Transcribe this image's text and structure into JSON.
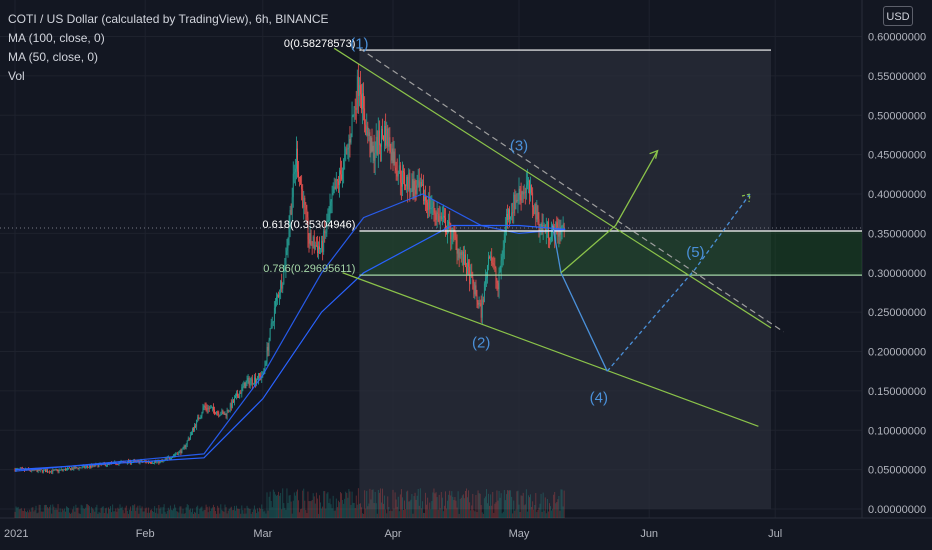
{
  "header": {
    "title": "COTI / US Dollar (calculated by TradingView), 6h, BINANCE",
    "indicators": [
      "MA (100, close, 0)",
      "MA (50, close, 0)",
      "Vol"
    ]
  },
  "currency_button": "USD",
  "colors": {
    "background": "#131722",
    "up_candle": "#26a69a",
    "down_candle": "#ef5350",
    "ma_line": "#2962ff",
    "projection": "#4a90d9",
    "trendline": "#8bc34a",
    "fib_green": "#a5d6a7",
    "fib_white": "#ffffff",
    "text": "#d1d4dc"
  },
  "chart_data": {
    "type": "candlestick",
    "title": "COTI / US Dollar (calculated by TradingView), 6h, BINANCE",
    "y_axis": {
      "ticks": [
        "0.60000000",
        "0.55000000",
        "0.50000000",
        "0.45000000",
        "0.40000000",
        "0.35000000",
        "0.30000000",
        "0.25000000",
        "0.20000000",
        "0.15000000",
        "0.10000000",
        "0.05000000",
        "0.00000000"
      ],
      "values": [
        0.6,
        0.55,
        0.5,
        0.45,
        0.4,
        0.35,
        0.3,
        0.25,
        0.2,
        0.15,
        0.1,
        0.05,
        0.0
      ],
      "range": [
        0,
        0.62
      ]
    },
    "x_axis": {
      "labels": [
        "2021",
        "Feb",
        "Mar",
        "Apr",
        "May",
        "Jun",
        "Jul"
      ],
      "dates": [
        "2021-01-01",
        "2021-02-01",
        "2021-03-01",
        "2021-04-01",
        "2021-05-01",
        "2021-06-01",
        "2021-07-01"
      ]
    },
    "price_path": [
      [
        "2021-01-01",
        0.05
      ],
      [
        "2021-01-10",
        0.048
      ],
      [
        "2021-01-20",
        0.055
      ],
      [
        "2021-01-28",
        0.06
      ],
      [
        "2021-02-05",
        0.06
      ],
      [
        "2021-02-10",
        0.075
      ],
      [
        "2021-02-15",
        0.13
      ],
      [
        "2021-02-20",
        0.12
      ],
      [
        "2021-02-25",
        0.16
      ],
      [
        "2021-03-01",
        0.17
      ],
      [
        "2021-03-04",
        0.26
      ],
      [
        "2021-03-06",
        0.3
      ],
      [
        "2021-03-09",
        0.45
      ],
      [
        "2021-03-12",
        0.34
      ],
      [
        "2021-03-15",
        0.33
      ],
      [
        "2021-03-18",
        0.4
      ],
      [
        "2021-03-21",
        0.45
      ],
      [
        "2021-03-24",
        0.55
      ],
      [
        "2021-03-25",
        0.5
      ],
      [
        "2021-03-27",
        0.45
      ],
      [
        "2021-03-30",
        0.48
      ],
      [
        "2021-04-03",
        0.42
      ],
      [
        "2021-04-08",
        0.4
      ],
      [
        "2021-04-12",
        0.37
      ],
      [
        "2021-04-15",
        0.35
      ],
      [
        "2021-04-19",
        0.3
      ],
      [
        "2021-04-22",
        0.25
      ],
      [
        "2021-04-24",
        0.33
      ],
      [
        "2021-04-26",
        0.28
      ],
      [
        "2021-04-28",
        0.37
      ],
      [
        "2021-05-01",
        0.4
      ],
      [
        "2021-05-03",
        0.41
      ],
      [
        "2021-05-06",
        0.36
      ],
      [
        "2021-05-09",
        0.35
      ],
      [
        "2021-05-12",
        0.36
      ]
    ],
    "moving_averages": [
      {
        "name": "MA (100, close, 0)",
        "points": [
          [
            "2021-01-01",
            0.05
          ],
          [
            "2021-02-15",
            0.065
          ],
          [
            "2021-03-01",
            0.14
          ],
          [
            "2021-03-15",
            0.25
          ],
          [
            "2021-03-25",
            0.3
          ],
          [
            "2021-04-15",
            0.36
          ],
          [
            "2021-05-01",
            0.36
          ],
          [
            "2021-05-12",
            0.355
          ]
        ]
      },
      {
        "name": "MA (50, close, 0)",
        "points": [
          [
            "2021-01-01",
            0.048
          ],
          [
            "2021-02-15",
            0.07
          ],
          [
            "2021-03-01",
            0.17
          ],
          [
            "2021-03-15",
            0.3
          ],
          [
            "2021-03-25",
            0.37
          ],
          [
            "2021-04-08",
            0.4
          ],
          [
            "2021-04-22",
            0.36
          ],
          [
            "2021-05-01",
            0.35
          ],
          [
            "2021-05-12",
            0.355
          ]
        ]
      }
    ],
    "fibonacci": [
      {
        "label": "0(0.58278573)",
        "value": 0.58278573,
        "color": "#ffffff"
      },
      {
        "label": "0.618(0.35304946)",
        "value": 0.35304946,
        "color": "#ffffff"
      },
      {
        "label": "0.786(0.29695611)",
        "value": 0.29695611,
        "color": "#a5d6a7"
      }
    ],
    "annotations": [
      {
        "label": "(1)",
        "date": "2021-03-24",
        "value": 0.585
      },
      {
        "label": "(2)",
        "date": "2021-04-22",
        "value": 0.205
      },
      {
        "label": "(3)",
        "date": "2021-05-01",
        "value": 0.455
      },
      {
        "label": "(4)",
        "date": "2021-05-20",
        "value": 0.135
      },
      {
        "label": "(5)",
        "date": "2021-06-12",
        "value": 0.32
      }
    ],
    "trendlines": [
      {
        "from": [
          "2021-03-18",
          0.585
        ],
        "to": [
          "2021-06-30",
          0.23
        ],
        "color": "#8bc34a",
        "style": "solid"
      },
      {
        "from": [
          "2021-03-20",
          0.3
        ],
        "to": [
          "2021-06-27",
          0.105
        ],
        "color": "#8bc34a",
        "style": "solid"
      },
      {
        "from": [
          "2021-03-24",
          0.585
        ],
        "to": [
          "2021-07-03",
          0.225
        ],
        "color": "#8bc34a",
        "style": "dashed"
      }
    ],
    "projection": [
      [
        "2021-05-09",
        0.36
      ],
      [
        "2021-05-11",
        0.3
      ],
      [
        "2021-05-22",
        0.175
      ],
      [
        "2021-06-12",
        0.305
      ],
      [
        "2021-06-25",
        0.4
      ]
    ],
    "projection_alt": [
      [
        "2021-05-11",
        0.3
      ],
      [
        "2021-05-24",
        0.36
      ],
      [
        "2021-06-03",
        0.455
      ]
    ],
    "volume_scale": "relative"
  }
}
